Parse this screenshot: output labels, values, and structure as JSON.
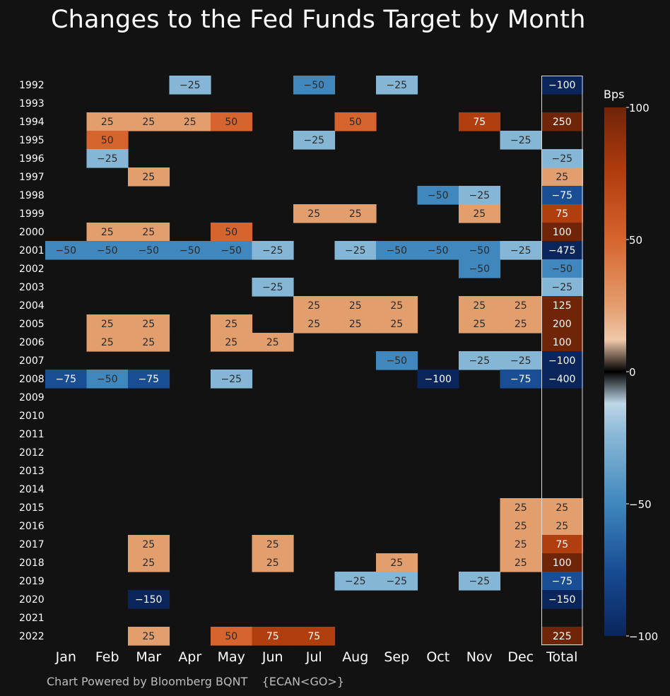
{
  "title": "Changes to the Fed Funds Target by Month",
  "footer": "Chart Powered by Bloomberg BQNT    {ECAN<GO>}",
  "colorbar": {
    "title": "Bps",
    "ticks": [
      "100",
      "50",
      "0",
      "−50",
      "−100"
    ],
    "range": [
      -100,
      100
    ]
  },
  "chart_data": {
    "type": "heatmap",
    "title": "Changes to the Fed Funds Target by Month",
    "x_categories": [
      "Jan",
      "Feb",
      "Mar",
      "Apr",
      "May",
      "Jun",
      "Jul",
      "Aug",
      "Sep",
      "Oct",
      "Nov",
      "Dec",
      "Total"
    ],
    "y_categories": [
      "1992",
      "1993",
      "1994",
      "1995",
      "1996",
      "1997",
      "1998",
      "1999",
      "2000",
      "2001",
      "2002",
      "2003",
      "2004",
      "2005",
      "2006",
      "2007",
      "2008",
      "2009",
      "2010",
      "2011",
      "2012",
      "2013",
      "2014",
      "2015",
      "2016",
      "2017",
      "2018",
      "2019",
      "2020",
      "2021",
      "2022"
    ],
    "values": [
      [
        null,
        null,
        null,
        -25,
        null,
        null,
        -50,
        null,
        -25,
        null,
        null,
        null,
        -100
      ],
      [
        null,
        null,
        null,
        null,
        null,
        null,
        null,
        null,
        null,
        null,
        null,
        null,
        null
      ],
      [
        null,
        25,
        25,
        25,
        50,
        null,
        null,
        50,
        null,
        null,
        75,
        null,
        250
      ],
      [
        null,
        50,
        null,
        null,
        null,
        null,
        -25,
        null,
        null,
        null,
        null,
        -25,
        null
      ],
      [
        null,
        -25,
        null,
        null,
        null,
        null,
        null,
        null,
        null,
        null,
        null,
        null,
        -25
      ],
      [
        null,
        null,
        25,
        null,
        null,
        null,
        null,
        null,
        null,
        null,
        null,
        null,
        25
      ],
      [
        null,
        null,
        null,
        null,
        null,
        null,
        null,
        null,
        null,
        -50,
        -25,
        null,
        -75
      ],
      [
        null,
        null,
        null,
        null,
        null,
        null,
        25,
        25,
        null,
        null,
        25,
        null,
        75
      ],
      [
        null,
        25,
        25,
        null,
        50,
        null,
        null,
        null,
        null,
        null,
        null,
        null,
        100
      ],
      [
        -50,
        -50,
        -50,
        -50,
        -50,
        -25,
        null,
        -25,
        -50,
        -50,
        -50,
        -25,
        -475
      ],
      [
        null,
        null,
        null,
        null,
        null,
        null,
        null,
        null,
        null,
        null,
        -50,
        null,
        -50
      ],
      [
        null,
        null,
        null,
        null,
        null,
        -25,
        null,
        null,
        null,
        null,
        null,
        null,
        -25
      ],
      [
        null,
        null,
        null,
        null,
        null,
        null,
        25,
        25,
        25,
        null,
        25,
        25,
        125
      ],
      [
        null,
        25,
        25,
        null,
        25,
        null,
        25,
        25,
        25,
        null,
        25,
        25,
        200
      ],
      [
        null,
        25,
        25,
        null,
        25,
        25,
        null,
        null,
        null,
        null,
        null,
        null,
        100
      ],
      [
        null,
        null,
        null,
        null,
        null,
        null,
        null,
        null,
        -50,
        null,
        -25,
        -25,
        -100
      ],
      [
        -75,
        -50,
        -75,
        null,
        -25,
        null,
        null,
        null,
        null,
        -100,
        null,
        -75,
        -400
      ],
      [
        null,
        null,
        null,
        null,
        null,
        null,
        null,
        null,
        null,
        null,
        null,
        null,
        null
      ],
      [
        null,
        null,
        null,
        null,
        null,
        null,
        null,
        null,
        null,
        null,
        null,
        null,
        null
      ],
      [
        null,
        null,
        null,
        null,
        null,
        null,
        null,
        null,
        null,
        null,
        null,
        null,
        null
      ],
      [
        null,
        null,
        null,
        null,
        null,
        null,
        null,
        null,
        null,
        null,
        null,
        null,
        null
      ],
      [
        null,
        null,
        null,
        null,
        null,
        null,
        null,
        null,
        null,
        null,
        null,
        null,
        null
      ],
      [
        null,
        null,
        null,
        null,
        null,
        null,
        null,
        null,
        null,
        null,
        null,
        null,
        null
      ],
      [
        null,
        null,
        null,
        null,
        null,
        null,
        null,
        null,
        null,
        null,
        null,
        25,
        25
      ],
      [
        null,
        null,
        null,
        null,
        null,
        null,
        null,
        null,
        null,
        null,
        null,
        25,
        25
      ],
      [
        null,
        null,
        25,
        null,
        null,
        25,
        null,
        null,
        null,
        null,
        null,
        25,
        75
      ],
      [
        null,
        null,
        25,
        null,
        null,
        25,
        null,
        null,
        25,
        null,
        null,
        25,
        100
      ],
      [
        null,
        null,
        null,
        null,
        null,
        null,
        null,
        -25,
        -25,
        null,
        -25,
        null,
        -75
      ],
      [
        null,
        null,
        -150,
        null,
        null,
        null,
        null,
        null,
        null,
        null,
        null,
        null,
        -150
      ],
      [
        null,
        null,
        null,
        null,
        null,
        null,
        null,
        null,
        null,
        null,
        null,
        null,
        null
      ],
      [
        null,
        null,
        25,
        null,
        50,
        75,
        75,
        null,
        null,
        null,
        null,
        null,
        225
      ]
    ],
    "color_range": [
      -100,
      100
    ],
    "colorscale": "blue-black-orange diverging",
    "colorbar_title": "Bps"
  }
}
